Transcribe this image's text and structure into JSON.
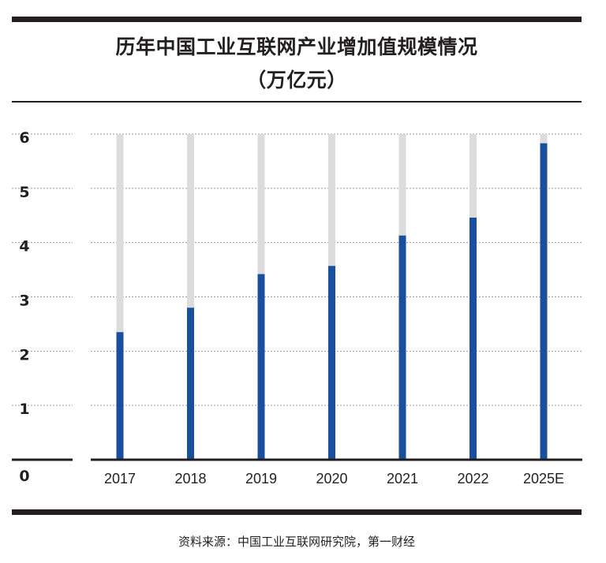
{
  "header": {
    "title_line1": "历年中国工业互联网产业增加值规模情况",
    "title_line2": "（万亿元）"
  },
  "footer": {
    "source": "资料来源：中国工业互联网研究院，第一财经"
  },
  "colors": {
    "bar": "#1a4f9e",
    "bar_track": "#dcdcdc",
    "rule": "#231f20",
    "grid": "#9a9a9a"
  },
  "chart_data": {
    "type": "bar",
    "title": "历年中国工业互联网产业增加值规模情况（万亿元）",
    "xlabel": "",
    "ylabel": "万亿元",
    "categories": [
      "2017",
      "2018",
      "2019",
      "2020",
      "2021",
      "2022",
      "2025E"
    ],
    "values": [
      2.35,
      2.8,
      3.42,
      3.57,
      4.13,
      4.46,
      5.83
    ],
    "ylim": [
      0,
      6
    ],
    "yticks": [
      "0",
      "1",
      "2",
      "3",
      "4",
      "5",
      "6"
    ],
    "track_max": 6,
    "grid": true,
    "legend": "none"
  }
}
